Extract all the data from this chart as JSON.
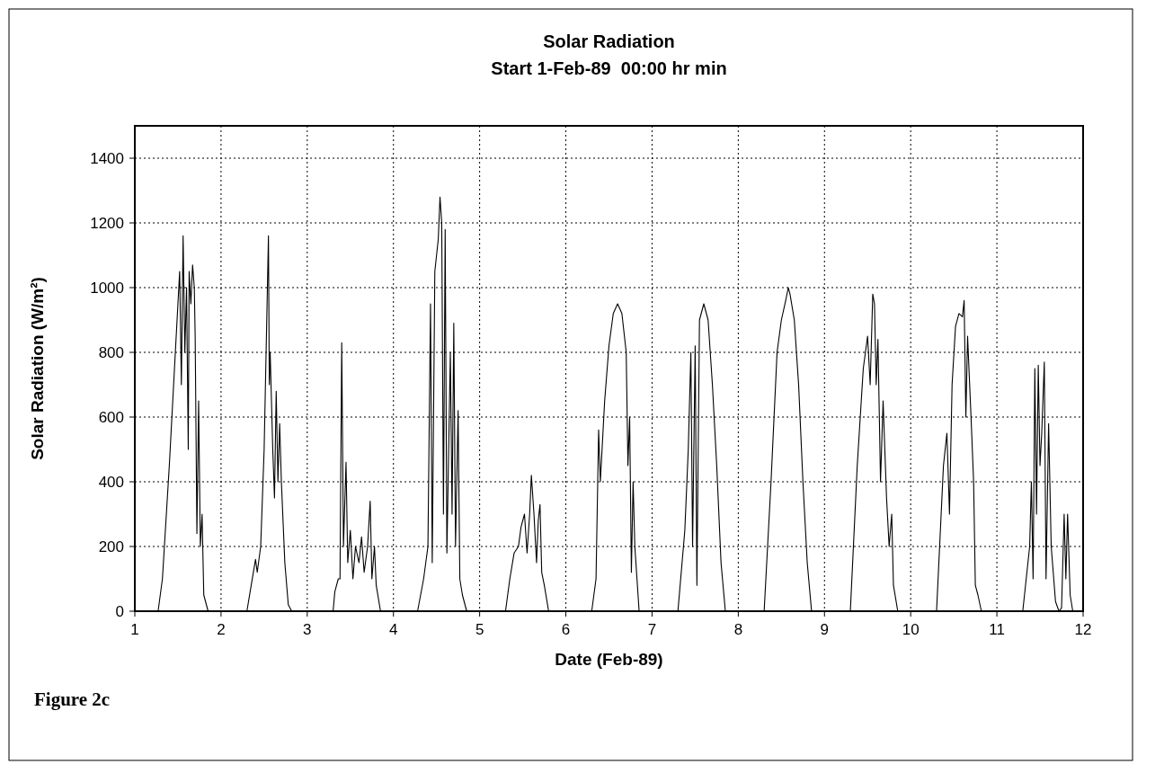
{
  "chart_data": {
    "type": "line",
    "title": "Solar Radiation",
    "subtitle": "Start 1-Feb-89  00:00 hr min",
    "xlabel": "Date (Feb-89)",
    "ylabel": "Solar Radiation (W/m²)",
    "annotations": [
      "Figure 2c"
    ],
    "xlim": [
      1,
      12
    ],
    "xticks": [
      1,
      2,
      3,
      4,
      5,
      6,
      7,
      8,
      9,
      10,
      11,
      12
    ],
    "ylim": [
      0,
      1500
    ],
    "yticks": [
      0,
      200,
      400,
      600,
      800,
      1000,
      1200,
      1400
    ],
    "grid": true,
    "series": [
      {
        "color": "#000000",
        "x": [
          1.0,
          1.27,
          1.32,
          1.4,
          1.46,
          1.5,
          1.52,
          1.54,
          1.56,
          1.58,
          1.6,
          1.62,
          1.63,
          1.65,
          1.67,
          1.69,
          1.7,
          1.72,
          1.74,
          1.76,
          1.78,
          1.8,
          1.85,
          2.3,
          2.35,
          2.4,
          2.42,
          2.46,
          2.5,
          2.55,
          2.56,
          2.57,
          2.6,
          2.62,
          2.64,
          2.66,
          2.68,
          2.7,
          2.74,
          2.78,
          2.82,
          3.3,
          3.32,
          3.36,
          3.38,
          3.4,
          3.42,
          3.45,
          3.47,
          3.5,
          3.53,
          3.56,
          3.6,
          3.63,
          3.66,
          3.7,
          3.73,
          3.75,
          3.78,
          3.8,
          3.85,
          4.28,
          4.35,
          4.4,
          4.43,
          4.45,
          4.48,
          4.52,
          4.54,
          4.56,
          4.58,
          4.6,
          4.62,
          4.66,
          4.68,
          4.7,
          4.72,
          4.75,
          4.77,
          4.8,
          4.85,
          5.3,
          5.35,
          5.4,
          5.45,
          5.48,
          5.52,
          5.55,
          5.58,
          5.6,
          5.63,
          5.66,
          5.68,
          5.7,
          5.72,
          5.75,
          5.8,
          6.3,
          6.35,
          6.38,
          6.4,
          6.45,
          6.5,
          6.55,
          6.6,
          6.65,
          6.7,
          6.72,
          6.74,
          6.76,
          6.78,
          6.8,
          6.85,
          7.3,
          7.38,
          7.42,
          7.45,
          7.47,
          7.5,
          7.52,
          7.55,
          7.6,
          7.65,
          7.7,
          7.75,
          7.8,
          7.85,
          8.3,
          8.38,
          8.45,
          8.5,
          8.55,
          8.58,
          8.6,
          8.65,
          8.7,
          8.75,
          8.8,
          8.85,
          9.3,
          9.38,
          9.45,
          9.5,
          9.53,
          9.56,
          9.58,
          9.6,
          9.62,
          9.65,
          9.68,
          9.72,
          9.75,
          9.78,
          9.8,
          9.85,
          10.3,
          10.38,
          10.42,
          10.45,
          10.48,
          10.52,
          10.56,
          10.6,
          10.62,
          10.64,
          10.66,
          10.7,
          10.73,
          10.75,
          10.78,
          10.82,
          11.3,
          11.38,
          11.4,
          11.42,
          11.44,
          11.46,
          11.48,
          11.5,
          11.52,
          11.55,
          11.57,
          11.6,
          11.63,
          11.68,
          11.72,
          11.75,
          11.78,
          11.8,
          11.82,
          11.85,
          11.88,
          12.0
        ],
        "values": [
          0,
          0,
          100,
          450,
          750,
          950,
          1050,
          700,
          1160,
          800,
          1000,
          500,
          1050,
          950,
          1070,
          1000,
          850,
          240,
          650,
          200,
          300,
          50,
          0,
          0,
          80,
          160,
          120,
          200,
          500,
          1160,
          700,
          800,
          500,
          350,
          680,
          400,
          580,
          400,
          150,
          20,
          0,
          0,
          60,
          100,
          100,
          830,
          200,
          460,
          150,
          250,
          100,
          200,
          150,
          230,
          120,
          200,
          340,
          100,
          200,
          80,
          0,
          0,
          100,
          200,
          950,
          150,
          1050,
          1150,
          1280,
          1200,
          300,
          1180,
          180,
          800,
          300,
          890,
          200,
          620,
          100,
          50,
          0,
          0,
          100,
          180,
          200,
          260,
          300,
          180,
          300,
          420,
          300,
          150,
          280,
          330,
          120,
          80,
          0,
          0,
          100,
          560,
          400,
          650,
          820,
          920,
          950,
          920,
          800,
          450,
          600,
          120,
          400,
          200,
          0,
          0,
          250,
          500,
          800,
          200,
          820,
          80,
          900,
          950,
          900,
          700,
          450,
          150,
          0,
          0,
          400,
          800,
          900,
          960,
          1000,
          980,
          900,
          700,
          400,
          150,
          0,
          0,
          450,
          750,
          850,
          700,
          980,
          950,
          700,
          840,
          400,
          650,
          350,
          200,
          300,
          80,
          0,
          0,
          450,
          550,
          300,
          700,
          880,
          920,
          910,
          960,
          600,
          850,
          600,
          400,
          80,
          50,
          0,
          0,
          200,
          400,
          100,
          750,
          300,
          760,
          450,
          550,
          770,
          100,
          580,
          200,
          30,
          0,
          10,
          300,
          100,
          300,
          50,
          0,
          0
        ]
      }
    ]
  }
}
